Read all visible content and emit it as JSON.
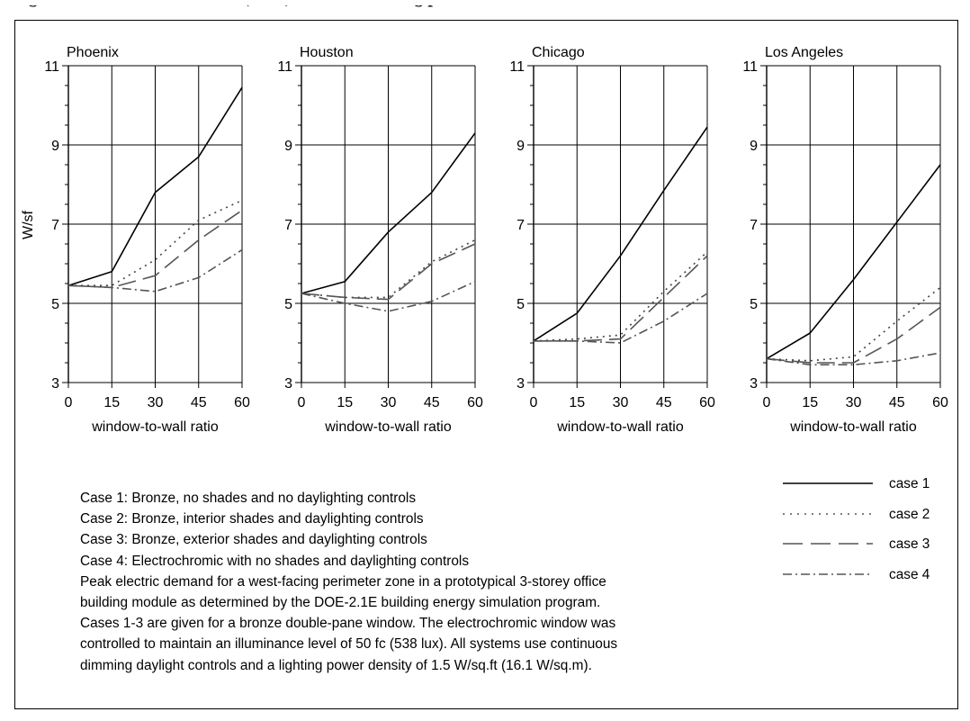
{
  "caption": "Figure: Peak electric demand (W/sf) for a west-facing perimeter zone",
  "chart_data": {
    "type": "line",
    "x": [
      0,
      15,
      30,
      45,
      60
    ],
    "xlabel": "window-to-wall ratio",
    "ylabel": "W/sf",
    "ylim": [
      3,
      11
    ],
    "yticks": [
      3,
      5,
      7,
      9,
      11
    ],
    "grid": true,
    "series_styles": {
      "case 1": "solid",
      "case 2": "dotted",
      "case 3": "long-dash",
      "case 4": "dash-dot"
    },
    "panels": [
      {
        "title": "Phoenix",
        "series": [
          {
            "name": "case 1",
            "values": [
              5.45,
              5.8,
              7.8,
              8.7,
              10.45
            ]
          },
          {
            "name": "case 2",
            "values": [
              5.45,
              5.45,
              6.1,
              7.1,
              7.6
            ]
          },
          {
            "name": "case 3",
            "values": [
              5.45,
              5.4,
              5.7,
              6.6,
              7.35
            ]
          },
          {
            "name": "case 4",
            "values": [
              5.45,
              5.4,
              5.3,
              5.65,
              6.35
            ]
          }
        ]
      },
      {
        "title": "Houston",
        "series": [
          {
            "name": "case 1",
            "values": [
              5.25,
              5.55,
              6.8,
              7.8,
              9.3
            ]
          },
          {
            "name": "case 2",
            "values": [
              5.25,
              5.15,
              5.15,
              6.05,
              6.6
            ]
          },
          {
            "name": "case 3",
            "values": [
              5.25,
              5.15,
              5.1,
              6.0,
              6.5
            ]
          },
          {
            "name": "case 4",
            "values": [
              5.25,
              5.0,
              4.8,
              5.05,
              5.55
            ]
          }
        ]
      },
      {
        "title": "Chicago",
        "series": [
          {
            "name": "case 1",
            "values": [
              4.05,
              4.75,
              6.2,
              7.85,
              9.45
            ]
          },
          {
            "name": "case 2",
            "values": [
              4.05,
              4.1,
              4.2,
              5.3,
              6.3
            ]
          },
          {
            "name": "case 3",
            "values": [
              4.05,
              4.05,
              4.1,
              5.15,
              6.2
            ]
          },
          {
            "name": "case 4",
            "values": [
              4.05,
              4.05,
              4.0,
              4.55,
              5.25
            ]
          }
        ]
      },
      {
        "title": "Los Angeles",
        "series": [
          {
            "name": "case 1",
            "values": [
              3.6,
              4.25,
              5.6,
              7.05,
              8.5
            ]
          },
          {
            "name": "case 2",
            "values": [
              3.6,
              3.55,
              3.65,
              4.55,
              5.4
            ]
          },
          {
            "name": "case 3",
            "values": [
              3.6,
              3.5,
              3.5,
              4.1,
              4.9
            ]
          },
          {
            "name": "case 4",
            "values": [
              3.6,
              3.45,
              3.45,
              3.55,
              3.75
            ]
          }
        ]
      }
    ]
  },
  "notes": [
    "Case 1: Bronze, no shades and no daylighting controls",
    "Case 2: Bronze, interior shades and daylighting controls",
    "Case 3: Bronze, exterior shades and daylighting controls",
    "Case 4: Electrochromic with no shades and daylighting controls",
    "Peak electric demand for a west-facing perimeter zone in a prototypical 3-storey office",
    "building module as determined by the DOE-2.1E building energy simulation program.",
    "Cases 1-3 are given for a bronze double-pane window.  The electrochromic window was",
    "controlled to maintain an illuminance level of 50 fc (538 lux).  All systems use continuous",
    "dimming daylight controls and a lighting power density of 1.5 W/sq.ft (16.1 W/sq.m)."
  ],
  "legend": [
    {
      "label": "case 1",
      "style": "solid"
    },
    {
      "label": "case 2",
      "style": "dotted"
    },
    {
      "label": "case 3",
      "style": "long-dash"
    },
    {
      "label": "case 4",
      "style": "dash-dot"
    }
  ]
}
